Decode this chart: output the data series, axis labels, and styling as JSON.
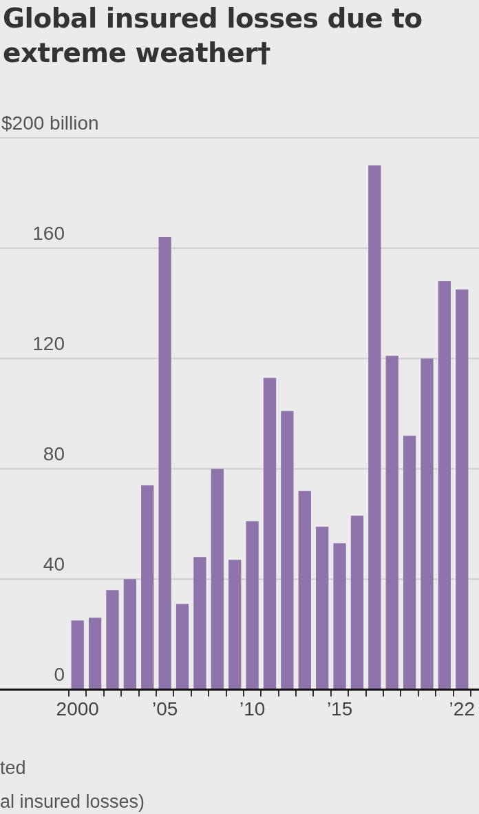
{
  "chart_data": {
    "type": "bar",
    "title": "Global insured losses due to extreme weather†",
    "categories": [
      "2000",
      null,
      null,
      null,
      null,
      "’05",
      null,
      null,
      null,
      null,
      "’10",
      null,
      null,
      null,
      null,
      "’15",
      null,
      null,
      null,
      null,
      null,
      null,
      "’22"
    ],
    "values": [
      25,
      26,
      36,
      40,
      74,
      164,
      31,
      48,
      80,
      47,
      61,
      113,
      101,
      72,
      59,
      53,
      63,
      190,
      121,
      92,
      120,
      148,
      145
    ],
    "color": "#8e74aa",
    "ylim": [
      0,
      200
    ],
    "yticks": [
      0,
      40,
      80,
      120,
      160,
      {
        "value": 200,
        "label": "$200 billion"
      }
    ],
    "grid": "y",
    "annotations": [
      "ted",
      "al insured losses)"
    ]
  }
}
